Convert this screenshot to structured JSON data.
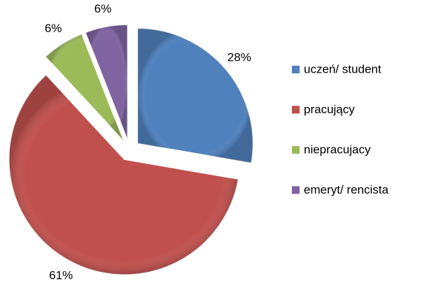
{
  "chart_data": {
    "type": "pie",
    "categories": [
      "uczeń/ student",
      "pracujący",
      "niepracujacy",
      "emeryt/ rencista"
    ],
    "values": [
      28,
      61,
      6,
      6
    ],
    "value_labels": [
      "28%",
      "61%",
      "6%",
      "6%"
    ],
    "colors": [
      "#4f81bd",
      "#c0504d",
      "#9bbb59",
      "#8064a2"
    ],
    "legend": "right"
  }
}
